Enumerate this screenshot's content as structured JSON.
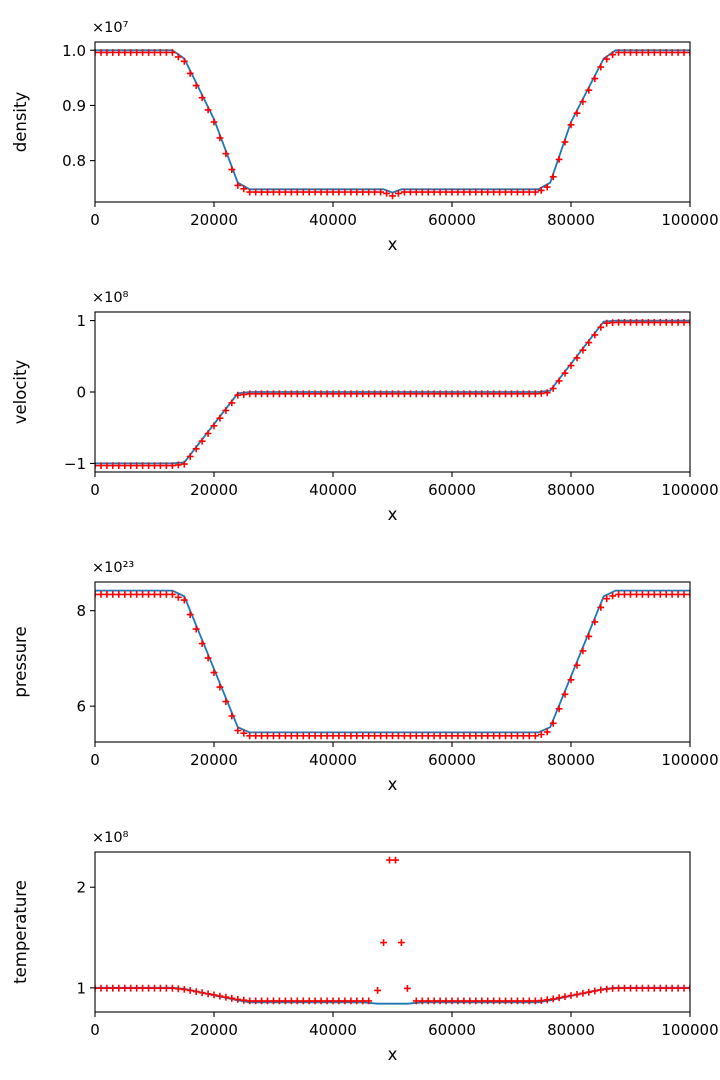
{
  "figure": {
    "background": "#ffffff",
    "axis_color": "#000000",
    "line_color": "#1f77b4",
    "marker_color": "#ff0000"
  },
  "chart_data": [
    {
      "type": "line",
      "title": "",
      "xlabel": "x",
      "ylabel": "density",
      "scale_label": "×10⁷",
      "xlim": [
        0,
        100000
      ],
      "ylim": [
        0.725,
        1.015
      ],
      "xticks": [
        {
          "v": 0,
          "label": "0"
        },
        {
          "v": 20000,
          "label": "20000"
        },
        {
          "v": 40000,
          "label": "40000"
        },
        {
          "v": 60000,
          "label": "60000"
        },
        {
          "v": 80000,
          "label": "80000"
        },
        {
          "v": 100000,
          "label": "100000"
        }
      ],
      "yticks": [
        {
          "v": 0.8,
          "label": "0.8"
        },
        {
          "v": 0.9,
          "label": "0.9"
        },
        {
          "v": 1.0,
          "label": "1.0"
        }
      ],
      "series": [
        {
          "name": "density-line",
          "style": "line",
          "color": "#1f77b4",
          "points": [
            [
              0,
              1.0
            ],
            [
              13000,
              1.0
            ],
            [
              15000,
              0.985
            ],
            [
              20000,
              0.875
            ],
            [
              24000,
              0.76
            ],
            [
              26000,
              0.748
            ],
            [
              48500,
              0.748
            ],
            [
              50000,
              0.742
            ],
            [
              51500,
              0.748
            ],
            [
              74500,
              0.748
            ],
            [
              76500,
              0.76
            ],
            [
              80000,
              0.87
            ],
            [
              85500,
              0.985
            ],
            [
              87500,
              1.0
            ],
            [
              100000,
              1.0
            ]
          ]
        },
        {
          "name": "density-markers",
          "style": "plus",
          "color": "#ff0000",
          "marker_step": 1000,
          "knots": [
            [
              0,
              0.996
            ],
            [
              13000,
              0.996
            ],
            [
              15000,
              0.98
            ],
            [
              20000,
              0.87
            ],
            [
              24000,
              0.755
            ],
            [
              26000,
              0.743
            ],
            [
              48500,
              0.743
            ],
            [
              50000,
              0.736
            ],
            [
              51500,
              0.743
            ],
            [
              74500,
              0.743
            ],
            [
              76500,
              0.755
            ],
            [
              80000,
              0.865
            ],
            [
              85500,
              0.98
            ],
            [
              87500,
              0.996
            ],
            [
              100000,
              0.996
            ]
          ]
        }
      ]
    },
    {
      "type": "line",
      "title": "",
      "xlabel": "x",
      "ylabel": "velocity",
      "scale_label": "×10⁸",
      "xlim": [
        0,
        100000
      ],
      "ylim": [
        -1.12,
        1.12
      ],
      "xticks": [
        {
          "v": 0,
          "label": "0"
        },
        {
          "v": 20000,
          "label": "20000"
        },
        {
          "v": 40000,
          "label": "40000"
        },
        {
          "v": 60000,
          "label": "60000"
        },
        {
          "v": 80000,
          "label": "80000"
        },
        {
          "v": 100000,
          "label": "100000"
        }
      ],
      "yticks": [
        {
          "v": -1,
          "label": "−1"
        },
        {
          "v": 0,
          "label": "0"
        },
        {
          "v": 1,
          "label": "1"
        }
      ],
      "series": [
        {
          "name": "velocity-line",
          "style": "line",
          "color": "#1f77b4",
          "points": [
            [
              0,
              -1.0
            ],
            [
              13000,
              -1.0
            ],
            [
              15000,
              -0.985
            ],
            [
              24000,
              -0.02
            ],
            [
              26000,
              0.0
            ],
            [
              74500,
              0.0
            ],
            [
              76500,
              0.02
            ],
            [
              85500,
              0.985
            ],
            [
              87500,
              1.0
            ],
            [
              100000,
              1.0
            ]
          ]
        },
        {
          "name": "velocity-markers",
          "style": "plus",
          "color": "#ff0000",
          "marker_step": 1000,
          "knots": [
            [
              0,
              -1.03
            ],
            [
              13000,
              -1.03
            ],
            [
              15000,
              -1.01
            ],
            [
              24000,
              -0.045
            ],
            [
              26000,
              -0.025
            ],
            [
              74500,
              -0.025
            ],
            [
              76500,
              -0.005
            ],
            [
              85500,
              0.96
            ],
            [
              87500,
              0.975
            ],
            [
              100000,
              0.975
            ]
          ]
        }
      ]
    },
    {
      "type": "line",
      "title": "",
      "xlabel": "x",
      "ylabel": "pressure",
      "scale_label": "×10²³",
      "xlim": [
        0,
        100000
      ],
      "ylim": [
        5.25,
        8.6
      ],
      "xticks": [
        {
          "v": 0,
          "label": "0"
        },
        {
          "v": 20000,
          "label": "20000"
        },
        {
          "v": 40000,
          "label": "40000"
        },
        {
          "v": 60000,
          "label": "60000"
        },
        {
          "v": 80000,
          "label": "80000"
        },
        {
          "v": 100000,
          "label": "100000"
        }
      ],
      "yticks": [
        {
          "v": 6,
          "label": "6"
        },
        {
          "v": 8,
          "label": "8"
        }
      ],
      "series": [
        {
          "name": "pressure-line",
          "style": "line",
          "color": "#1f77b4",
          "points": [
            [
              0,
              8.42
            ],
            [
              13000,
              8.42
            ],
            [
              15000,
              8.3
            ],
            [
              24000,
              5.56
            ],
            [
              26000,
              5.45
            ],
            [
              74500,
              5.45
            ],
            [
              76500,
              5.56
            ],
            [
              85500,
              8.3
            ],
            [
              87500,
              8.42
            ],
            [
              100000,
              8.42
            ]
          ]
        },
        {
          "name": "pressure-markers",
          "style": "plus",
          "color": "#ff0000",
          "marker_step": 1000,
          "knots": [
            [
              0,
              8.34
            ],
            [
              13000,
              8.34
            ],
            [
              15000,
              8.22
            ],
            [
              24000,
              5.49
            ],
            [
              26000,
              5.38
            ],
            [
              74500,
              5.38
            ],
            [
              76500,
              5.49
            ],
            [
              85500,
              8.22
            ],
            [
              87500,
              8.34
            ],
            [
              100000,
              8.34
            ]
          ]
        }
      ]
    },
    {
      "type": "line",
      "title": "",
      "xlabel": "x",
      "ylabel": "temperature",
      "scale_label": "×10⁸",
      "xlim": [
        0,
        100000
      ],
      "ylim": [
        0.76,
        2.35
      ],
      "xticks": [
        {
          "v": 0,
          "label": "0"
        },
        {
          "v": 20000,
          "label": "20000"
        },
        {
          "v": 40000,
          "label": "40000"
        },
        {
          "v": 60000,
          "label": "60000"
        },
        {
          "v": 80000,
          "label": "80000"
        },
        {
          "v": 100000,
          "label": "100000"
        }
      ],
      "yticks": [
        {
          "v": 1,
          "label": "1"
        },
        {
          "v": 2,
          "label": "2"
        }
      ],
      "series": [
        {
          "name": "temperature-line",
          "style": "line",
          "color": "#1f77b4",
          "points": [
            [
              0,
              1.0
            ],
            [
              13000,
              1.0
            ],
            [
              15000,
              0.99
            ],
            [
              24000,
              0.875
            ],
            [
              26000,
              0.856
            ],
            [
              45000,
              0.856
            ],
            [
              47500,
              0.842
            ],
            [
              52500,
              0.842
            ],
            [
              55000,
              0.856
            ],
            [
              74500,
              0.856
            ],
            [
              76500,
              0.875
            ],
            [
              85500,
              0.99
            ],
            [
              87500,
              1.0
            ],
            [
              100000,
              1.0
            ]
          ]
        },
        {
          "name": "temperature-markers",
          "style": "plus",
          "color": "#ff0000",
          "marker_step": 1000,
          "knots": [
            [
              0,
              0.997
            ],
            [
              13000,
              0.997
            ],
            [
              15000,
              0.985
            ],
            [
              24000,
              0.885
            ],
            [
              26000,
              0.87
            ],
            [
              74500,
              0.87
            ],
            [
              76500,
              0.885
            ],
            [
              85500,
              0.985
            ],
            [
              87500,
              0.997
            ],
            [
              100000,
              0.997
            ]
          ],
          "gap": [
            46400,
            53600
          ],
          "outliers": [
            [
              47500,
              0.975
            ],
            [
              52500,
              0.995
            ],
            [
              48500,
              1.45
            ],
            [
              51500,
              1.45
            ],
            [
              49500,
              2.27
            ],
            [
              50500,
              2.27
            ]
          ]
        }
      ]
    }
  ]
}
